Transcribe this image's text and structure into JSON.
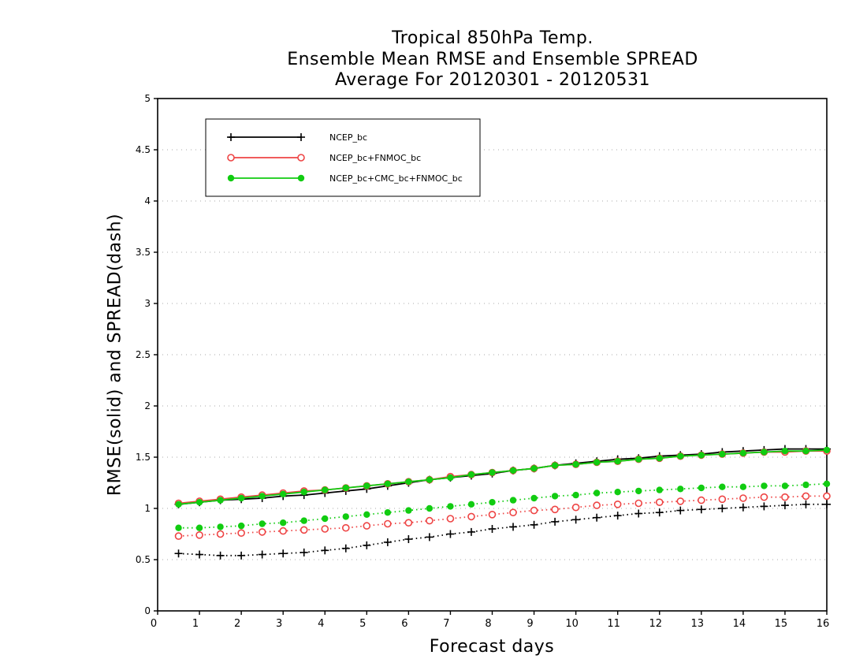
{
  "chart_data": {
    "type": "line",
    "title": [
      "Tropical 850hPa Temp.",
      "Ensemble Mean RMSE and Ensemble SPREAD",
      "Average For 20120301 - 20120531"
    ],
    "xlabel": "Forecast days",
    "ylabel": "RMSE(solid) and SPREAD(dash)",
    "xlim": [
      0,
      16
    ],
    "ylim": [
      0,
      5
    ],
    "xticks": [
      "0",
      "1",
      "2",
      "3",
      "4",
      "5",
      "6",
      "7",
      "8",
      "9",
      "10",
      "11",
      "12",
      "13",
      "14",
      "15",
      "16"
    ],
    "yticks": [
      "0",
      "0.5",
      "1",
      "1.5",
      "2",
      "2.5",
      "3",
      "3.5",
      "4",
      "4.5",
      "5"
    ],
    "grid": "horizontal dotted",
    "legend_position": "top-left",
    "x": [
      0.5,
      1,
      1.5,
      2,
      2.5,
      3,
      3.5,
      4,
      4.5,
      5,
      5.5,
      6,
      6.5,
      7,
      7.5,
      8,
      8.5,
      9,
      9.5,
      10,
      10.5,
      11,
      11.5,
      12,
      12.5,
      13,
      13.5,
      14,
      14.5,
      15,
      15.5,
      16
    ],
    "series": [
      {
        "name": "NCEP_bc",
        "color": "#000000",
        "marker": "plus",
        "rmse": [
          1.04,
          1.06,
          1.08,
          1.09,
          1.1,
          1.12,
          1.13,
          1.15,
          1.17,
          1.19,
          1.22,
          1.25,
          1.28,
          1.3,
          1.32,
          1.34,
          1.37,
          1.39,
          1.42,
          1.44,
          1.46,
          1.48,
          1.49,
          1.51,
          1.52,
          1.53,
          1.55,
          1.56,
          1.57,
          1.58,
          1.58,
          1.58
        ],
        "spread": [
          0.56,
          0.55,
          0.54,
          0.54,
          0.55,
          0.56,
          0.57,
          0.59,
          0.61,
          0.64,
          0.67,
          0.7,
          0.72,
          0.75,
          0.77,
          0.8,
          0.82,
          0.84,
          0.87,
          0.89,
          0.91,
          0.93,
          0.95,
          0.96,
          0.98,
          0.99,
          1.0,
          1.01,
          1.02,
          1.03,
          1.04,
          1.04
        ]
      },
      {
        "name": "NCEP_bc+FNMOC_bc",
        "color": "#ee4444",
        "marker": "open-circle",
        "rmse": [
          1.05,
          1.07,
          1.09,
          1.11,
          1.13,
          1.15,
          1.17,
          1.18,
          1.2,
          1.22,
          1.24,
          1.26,
          1.28,
          1.31,
          1.33,
          1.35,
          1.37,
          1.39,
          1.42,
          1.43,
          1.45,
          1.46,
          1.48,
          1.49,
          1.51,
          1.52,
          1.53,
          1.54,
          1.55,
          1.55,
          1.56,
          1.56
        ],
        "spread": [
          0.73,
          0.74,
          0.75,
          0.76,
          0.77,
          0.78,
          0.79,
          0.8,
          0.81,
          0.83,
          0.85,
          0.86,
          0.88,
          0.9,
          0.92,
          0.94,
          0.96,
          0.98,
          0.99,
          1.01,
          1.03,
          1.04,
          1.05,
          1.06,
          1.07,
          1.08,
          1.09,
          1.1,
          1.11,
          1.11,
          1.12,
          1.12
        ]
      },
      {
        "name": "NCEP_bc+CMC_bc+FNMOC_bc",
        "color": "#11cc11",
        "marker": "filled-circle",
        "rmse": [
          1.04,
          1.06,
          1.08,
          1.1,
          1.12,
          1.14,
          1.16,
          1.18,
          1.2,
          1.22,
          1.24,
          1.26,
          1.28,
          1.3,
          1.33,
          1.35,
          1.37,
          1.39,
          1.42,
          1.43,
          1.45,
          1.46,
          1.48,
          1.49,
          1.51,
          1.52,
          1.53,
          1.54,
          1.55,
          1.56,
          1.56,
          1.57
        ],
        "spread": [
          0.81,
          0.81,
          0.82,
          0.83,
          0.85,
          0.86,
          0.88,
          0.9,
          0.92,
          0.94,
          0.96,
          0.98,
          1.0,
          1.02,
          1.04,
          1.06,
          1.08,
          1.1,
          1.12,
          1.13,
          1.15,
          1.16,
          1.17,
          1.18,
          1.19,
          1.2,
          1.21,
          1.21,
          1.22,
          1.22,
          1.23,
          1.24
        ]
      }
    ]
  }
}
